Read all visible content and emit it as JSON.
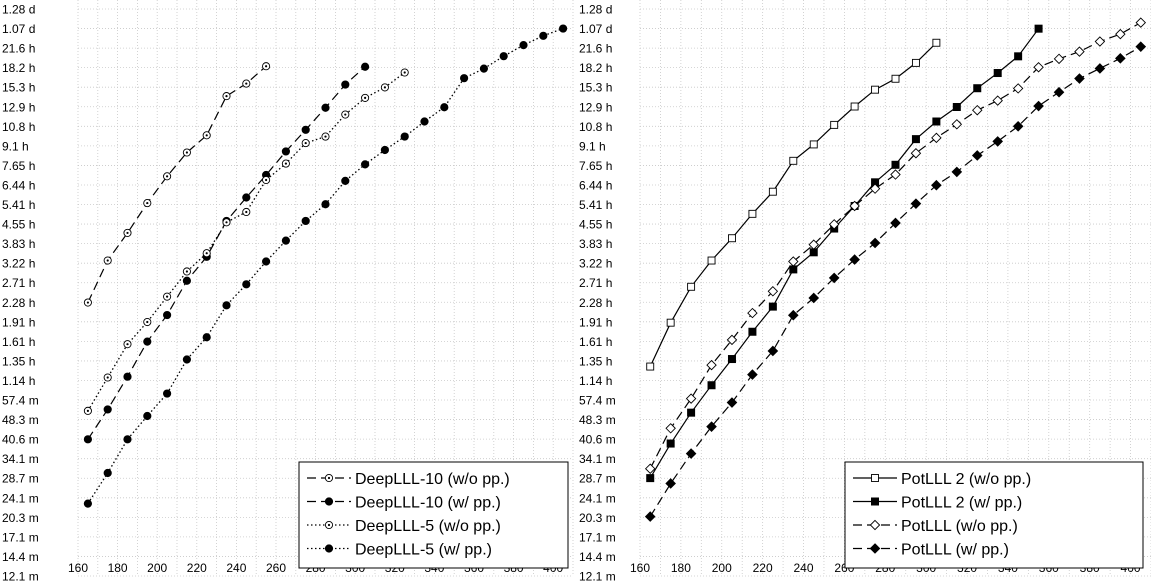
{
  "chart_data": [
    {
      "type": "line",
      "y_scale": "log",
      "y_unit": "seconds",
      "xlim": [
        160,
        410
      ],
      "x_ticks": [
        "160",
        "180",
        "200",
        "220",
        "240",
        "260",
        "280",
        "300",
        "320",
        "340",
        "360",
        "380",
        "400"
      ],
      "y_ticks": [
        "1.28 d",
        "1.07 d",
        "21.6 h",
        "18.2 h",
        "15.3 h",
        "12.9 h",
        "10.8 h",
        "9.1 h",
        "7.65 h",
        "6.44 h",
        "5.41 h",
        "4.55 h",
        "3.83 h",
        "3.22 h",
        "2.71 h",
        "2.28 h",
        "1.91 h",
        "1.61 h",
        "1.35 h",
        "1.14 h",
        "57.4 m",
        "48.3 m",
        "40.6 m",
        "34.1 m",
        "28.7 m",
        "24.1 m",
        "20.3 m",
        "17.1 m",
        "14.4 m",
        "12.1 m"
      ],
      "grid": true,
      "legend_position": "bottom-right",
      "series": [
        {
          "name": "DeepLLL-10 (w/o pp.)",
          "line": "dashed",
          "marker": "circle-dot-open",
          "x": [
            165,
            175,
            185,
            195,
            205,
            215,
            225,
            235,
            245,
            255
          ],
          "y": [
            8200,
            11900,
            15200,
            19800,
            25100,
            31000,
            36100,
            51100,
            57100,
            66600
          ]
        },
        {
          "name": "DeepLLL-10 (w/ pp.)",
          "line": "dashed",
          "marker": "circle-filled",
          "x": [
            165,
            175,
            185,
            195,
            205,
            215,
            225,
            235,
            245,
            255,
            265,
            275,
            285,
            295,
            305
          ],
          "y": [
            2440,
            3180,
            4250,
            5800,
            7340,
            9950,
            12300,
            16900,
            20800,
            25400,
            31300,
            37900,
            46100,
            56600,
            66300
          ]
        },
        {
          "name": "DeepLLL-5 (w/o pp.)",
          "line": "dotted",
          "marker": "circle-dot-open",
          "x": [
            165,
            175,
            185,
            195,
            205,
            215,
            225,
            235,
            245,
            255,
            265,
            275,
            285,
            295,
            305,
            315,
            325
          ],
          "y": [
            3140,
            4220,
            5670,
            6900,
            8640,
            10800,
            12700,
            16700,
            18300,
            24300,
            28100,
            33700,
            35700,
            43400,
            50300,
            55200,
            63000
          ]
        },
        {
          "name": "DeepLLL-5 (w/ pp.)",
          "line": "dotted",
          "marker": "circle-filled",
          "x": [
            165,
            175,
            185,
            195,
            205,
            215,
            225,
            235,
            245,
            255,
            265,
            275,
            285,
            295,
            305,
            315,
            325,
            335,
            345,
            355,
            365,
            375,
            385,
            395,
            405
          ],
          "y": [
            1380,
            1810,
            2440,
            3000,
            3660,
            4950,
            6030,
            8000,
            9640,
            11800,
            14200,
            16900,
            19600,
            24100,
            27900,
            31700,
            35700,
            40800,
            46300,
            59900,
            65200,
            72800,
            80300,
            87200,
            93000
          ]
        }
      ]
    },
    {
      "type": "line",
      "y_scale": "log",
      "y_unit": "seconds",
      "xlim": [
        160,
        410
      ],
      "x_ticks": [
        "160",
        "180",
        "200",
        "220",
        "240",
        "260",
        "280",
        "300",
        "320",
        "340",
        "360",
        "380",
        "400"
      ],
      "y_ticks": [
        "1.28 d",
        "1.07 d",
        "21.6 h",
        "18.2 h",
        "15.3 h",
        "12.9 h",
        "10.8 h",
        "9.1 h",
        "7.65 h",
        "6.44 h",
        "5.41 h",
        "4.55 h",
        "3.83 h",
        "3.22 h",
        "2.71 h",
        "2.28 h",
        "1.91 h",
        "1.61 h",
        "1.35 h",
        "1.14 h",
        "57.4 m",
        "48.3 m",
        "40.6 m",
        "34.1 m",
        "28.7 m",
        "24.1 m",
        "20.3 m",
        "17.1 m",
        "14.4 m",
        "12.1 m"
      ],
      "grid": true,
      "legend_position": "bottom-right",
      "series": [
        {
          "name": "PotLLL 2 (w/o pp.)",
          "line": "solid",
          "marker": "square-open",
          "x": [
            165,
            175,
            185,
            195,
            205,
            215,
            225,
            235,
            245,
            255,
            265,
            275,
            285,
            295,
            305
          ],
          "y": [
            4650,
            6860,
            9430,
            11900,
            14500,
            18000,
            21900,
            28800,
            33300,
            39600,
            46600,
            54100,
            59600,
            68600,
            82000
          ]
        },
        {
          "name": "PotLLL 2 (w/ pp.)",
          "line": "solid",
          "marker": "square-filled",
          "x": [
            165,
            175,
            185,
            195,
            205,
            215,
            225,
            235,
            245,
            255,
            265,
            275,
            285,
            295,
            305,
            315,
            325,
            335,
            345,
            355
          ],
          "y": [
            1730,
            2350,
            3090,
            3940,
            4970,
            6330,
            7910,
            11000,
            12800,
            15800,
            19300,
            23800,
            27800,
            34900,
            40800,
            46400,
            54800,
            62700,
            72700,
            92900
          ]
        },
        {
          "name": "PotLLL (w/o pp.)",
          "line": "dashed",
          "marker": "diamond-open",
          "x": [
            165,
            175,
            185,
            195,
            205,
            215,
            225,
            235,
            245,
            255,
            265,
            275,
            285,
            295,
            305,
            315,
            325,
            335,
            345,
            355,
            365,
            375,
            385,
            395,
            405
          ],
          "y": [
            1880,
            2690,
            3500,
            4710,
            5890,
            7470,
            9060,
            11800,
            13700,
            16400,
            19300,
            22500,
            25500,
            30800,
            35300,
            39800,
            45100,
            49100,
            54700,
            66000,
            71100,
            75800,
            82900,
            88500,
            98000
          ]
        },
        {
          "name": "PotLLL (w/ pp.)",
          "line": "dashed",
          "marker": "diamond-filled",
          "x": [
            165,
            175,
            185,
            195,
            205,
            215,
            225,
            235,
            245,
            255,
            265,
            275,
            285,
            295,
            305,
            315,
            325,
            335,
            345,
            355,
            365,
            375,
            385,
            395,
            405
          ],
          "y": [
            1230,
            1650,
            2150,
            2730,
            3380,
            4330,
            5340,
            7330,
            8540,
            10200,
            12000,
            13900,
            16600,
            19700,
            23200,
            26100,
            30200,
            34200,
            39100,
            46800,
            52900,
            59700,
            65300,
            71400,
            79200
          ]
        }
      ]
    }
  ]
}
